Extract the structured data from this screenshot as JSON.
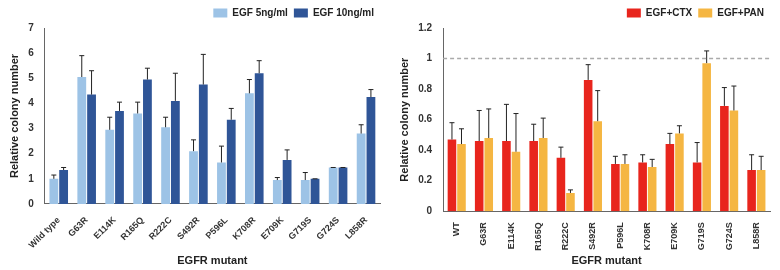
{
  "chart_data": [
    {
      "type": "bar",
      "x_label": "EGFR mutant",
      "y_label": "Relative colony number",
      "categories": [
        "Wild type",
        "G63R",
        "E114K",
        "R165Q",
        "R222C",
        "S492R",
        "P596L",
        "K708R",
        "E709K",
        "G719S",
        "G724S",
        "L858R"
      ],
      "series": [
        {
          "name": "EGF 5ng/ml",
          "color": "#9dc3e6",
          "values": [
            1.0,
            5.05,
            2.95,
            3.6,
            3.05,
            2.1,
            1.65,
            4.4,
            0.95,
            0.95,
            1.45,
            2.8
          ],
          "errors": [
            0.15,
            0.85,
            0.5,
            0.45,
            0.4,
            0.45,
            0.65,
            0.55,
            0.1,
            0.3,
            0,
            0.35
          ]
        },
        {
          "name": "EGF 10ng/ml",
          "color": "#2f5597",
          "values": [
            1.35,
            4.35,
            3.7,
            4.95,
            4.1,
            4.75,
            3.35,
            5.2,
            1.75,
            1.0,
            1.45,
            4.25
          ],
          "errors": [
            0.1,
            0.95,
            0.35,
            0.45,
            1.1,
            1.2,
            0.45,
            0.5,
            0.4,
            0,
            0,
            0.3
          ]
        }
      ],
      "ylim": [
        0,
        7
      ],
      "yticks": [
        0,
        1,
        2,
        3,
        4,
        5,
        6,
        7
      ],
      "grid": false,
      "legend": "upper right"
    },
    {
      "type": "bar",
      "x_label": "EGFR mutant",
      "y_label": "Relative colony number",
      "categories": [
        "WT",
        "G63R",
        "E114K",
        "R165Q",
        "R222C",
        "S492R",
        "P596L",
        "K708R",
        "E709K",
        "G719S",
        "G724S",
        "L858R"
      ],
      "series": [
        {
          "name": "EGF+CTX",
          "color": "#e8251d",
          "values": [
            0.47,
            0.46,
            0.46,
            0.46,
            0.35,
            0.86,
            0.31,
            0.32,
            0.44,
            0.32,
            0.69,
            0.27
          ],
          "errors": [
            0.11,
            0.2,
            0.24,
            0.11,
            0.07,
            0.1,
            0.05,
            0.05,
            0.07,
            0.13,
            0.12,
            0.1
          ]
        },
        {
          "name": "EGF+PAN",
          "color": "#f5b642",
          "values": [
            0.44,
            0.48,
            0.39,
            0.48,
            0.12,
            0.59,
            0.31,
            0.29,
            0.51,
            0.97,
            0.66,
            0.27
          ],
          "errors": [
            0.1,
            0.19,
            0.25,
            0.13,
            0.02,
            0.2,
            0.06,
            0.05,
            0.05,
            0.08,
            0.16,
            0.09
          ]
        }
      ],
      "ylim": [
        0,
        1.2
      ],
      "yticks": [
        0,
        0.2,
        0.4,
        0.6,
        0.8,
        1,
        1.2
      ],
      "reference_line": 1,
      "grid": false,
      "legend": "upper right"
    }
  ]
}
